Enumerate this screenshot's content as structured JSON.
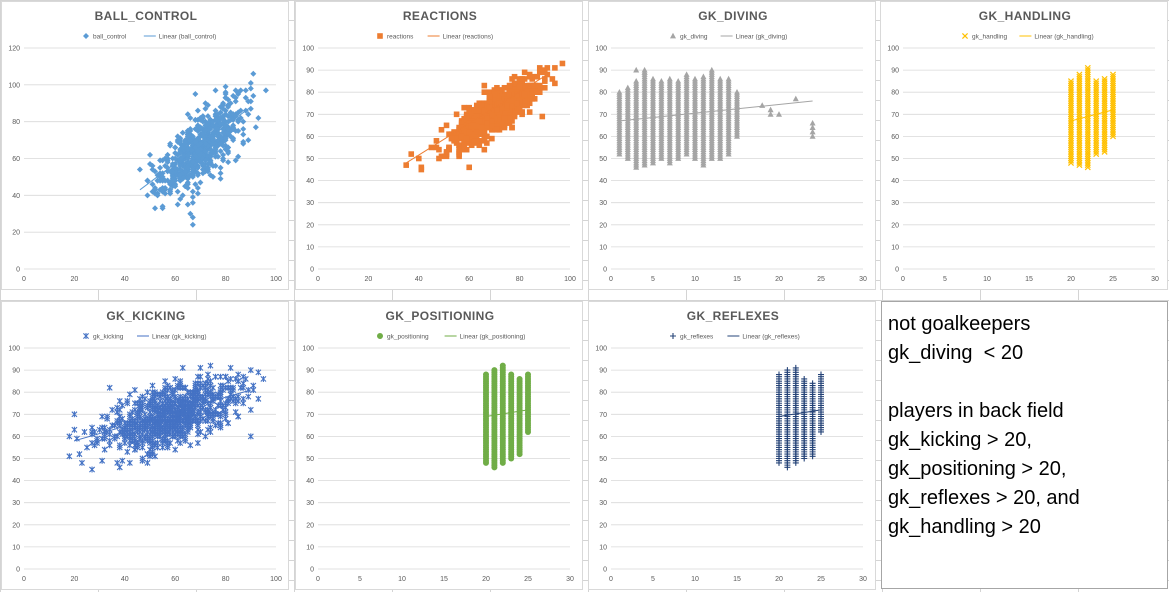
{
  "charts": [
    {
      "id": "ball_control",
      "title": "BALL_CONTROL",
      "color": "#5b9bd5",
      "marker": "diamond",
      "series_name": "ball_control",
      "trend_name": "Linear (ball_control)",
      "xlim": [
        0,
        100
      ],
      "xstep": 20,
      "ylim": [
        0,
        120
      ],
      "ystep": 20,
      "cloud": {
        "type": "ellipse",
        "cx": 70,
        "cy": 66,
        "sx": 8,
        "sy": 12,
        "rho": 0.72,
        "n": 700,
        "extra": [
          [
            53,
            40
          ],
          [
            60,
            45
          ],
          [
            65,
            35
          ],
          [
            66,
            30
          ],
          [
            67,
            28
          ],
          [
            67,
            24
          ],
          [
            55,
            48
          ],
          [
            88,
            97
          ],
          [
            90,
            98
          ],
          [
            85,
            96
          ]
        ]
      },
      "chart_data": {
        "type": "scatter",
        "xlabel": "",
        "ylabel": "",
        "series": [
          {
            "name": "ball_control",
            "x": [
              48,
              55,
              60,
              65,
              70,
              75,
              80,
              85,
              90,
              67
            ],
            "y": [
              44,
              52,
              58,
              64,
              70,
              76,
              82,
              90,
              97,
              24
            ]
          }
        ],
        "trendline": {
          "name": "Linear (ball_control)",
          "x": [
            46,
            90
          ],
          "y": [
            43,
            88
          ]
        },
        "xlim": [
          0,
          100
        ],
        "ylim": [
          0,
          120
        ],
        "legend": "top",
        "grid": true
      }
    },
    {
      "id": "reactions",
      "title": "REACTIONS",
      "color": "#ed7d31",
      "marker": "square",
      "series_name": "reactions",
      "trend_name": "Linear (reactions)",
      "xlim": [
        0,
        100
      ],
      "xstep": 20,
      "ylim": [
        0,
        100
      ],
      "ystep": 10,
      "cloud": {
        "type": "ellipse",
        "cx": 70,
        "cy": 71,
        "sx": 8,
        "sy": 7,
        "rho": 0.82,
        "n": 900,
        "extra": [
          [
            35,
            47
          ],
          [
            37,
            52
          ],
          [
            40,
            50
          ],
          [
            45,
            55
          ],
          [
            47,
            58
          ],
          [
            60,
            46
          ],
          [
            91,
            91
          ],
          [
            90,
            89
          ]
        ]
      },
      "chart_data": {
        "type": "scatter",
        "xlabel": "",
        "ylabel": "",
        "series": [
          {
            "name": "reactions",
            "x": [
              35,
              45,
              55,
              65,
              70,
              75,
              85,
              91
            ],
            "y": [
              47,
              55,
              62,
              68,
              71,
              75,
              84,
              91
            ]
          }
        ],
        "trendline": {
          "name": "Linear (reactions)",
          "x": [
            35,
            91
          ],
          "y": [
            48,
            88
          ]
        },
        "xlim": [
          0,
          100
        ],
        "ylim": [
          0,
          100
        ],
        "legend": "top",
        "grid": true
      }
    },
    {
      "id": "gk_diving",
      "title": "GK_DIVING",
      "color": "#a5a5a5",
      "marker": "triangle",
      "series_name": "gk_diving",
      "trend_name": "Linear (gk_diving)",
      "xlim": [
        0,
        30
      ],
      "xstep": 5,
      "ylim": [
        0,
        100
      ],
      "ystep": 10,
      "cloud": {
        "type": "columns",
        "cols": [
          [
            1,
            52,
            80
          ],
          [
            2,
            50,
            82
          ],
          [
            3,
            46,
            85
          ],
          [
            4,
            47,
            90
          ],
          [
            5,
            48,
            86
          ],
          [
            6,
            50,
            85
          ],
          [
            7,
            48,
            86
          ],
          [
            8,
            50,
            85
          ],
          [
            9,
            52,
            88
          ],
          [
            10,
            50,
            86
          ],
          [
            11,
            47,
            87
          ],
          [
            12,
            50,
            90
          ],
          [
            13,
            50,
            86
          ],
          [
            14,
            52,
            86
          ],
          [
            15,
            60,
            80
          ]
        ],
        "extra": [
          [
            18,
            74
          ],
          [
            19,
            70
          ],
          [
            19,
            72
          ],
          [
            20,
            70
          ],
          [
            22,
            77
          ],
          [
            24,
            66
          ],
          [
            24,
            64
          ],
          [
            24,
            62
          ],
          [
            24,
            60
          ],
          [
            3,
            90
          ],
          [
            4,
            89
          ]
        ]
      },
      "chart_data": {
        "type": "scatter",
        "xlabel": "",
        "ylabel": "",
        "series": [
          {
            "name": "gk_diving",
            "x": [
              1,
              3,
              5,
              8,
              10,
              12,
              15,
              18,
              22,
              24
            ],
            "y": [
              65,
              68,
              72,
              70,
              72,
              74,
              70,
              74,
              77,
              63
            ]
          }
        ],
        "trendline": {
          "name": "Linear (gk_diving)",
          "x": [
            1,
            24
          ],
          "y": [
            67,
            76
          ]
        },
        "xlim": [
          0,
          30
        ],
        "ylim": [
          0,
          100
        ],
        "legend": "top",
        "grid": true
      }
    },
    {
      "id": "gk_handling",
      "title": "GK_HANDLING",
      "color": "#ffc000",
      "marker": "x",
      "series_name": "gk_handling",
      "trend_name": "Linear (gk_handling)",
      "xlim": [
        0,
        30
      ],
      "xstep": 5,
      "ylim": [
        0,
        100
      ],
      "ystep": 10,
      "cloud": {
        "type": "columns",
        "cols": [
          [
            20,
            48,
            85
          ],
          [
            21,
            47,
            88
          ],
          [
            22,
            46,
            91
          ],
          [
            23,
            52,
            85
          ],
          [
            24,
            53,
            86
          ],
          [
            25,
            60,
            88
          ]
        ],
        "extra": []
      },
      "chart_data": {
        "type": "scatter",
        "xlabel": "",
        "ylabel": "",
        "series": [
          {
            "name": "gk_handling",
            "x": [
              20,
              21,
              22,
              23,
              24,
              25
            ],
            "y": [
              66,
              68,
              69,
              68,
              70,
              72
            ]
          }
        ],
        "trendline": {
          "name": "Linear (gk_handling)",
          "x": [
            20,
            25
          ],
          "y": [
            67,
            72
          ]
        },
        "xlim": [
          0,
          30
        ],
        "ylim": [
          0,
          100
        ],
        "legend": "top",
        "grid": true
      }
    },
    {
      "id": "gk_kicking",
      "title": "GK_KICKING",
      "color": "#4472c4",
      "marker": "star",
      "series_name": "gk_kicking",
      "trend_name": "Linear (gk_kicking)",
      "xlim": [
        0,
        100
      ],
      "xstep": 20,
      "ylim": [
        0,
        100
      ],
      "ystep": 10,
      "cloud": {
        "type": "ellipse",
        "cx": 58,
        "cy": 69,
        "sx": 13,
        "sy": 8,
        "rho": 0.55,
        "n": 900,
        "extra": [
          [
            20,
            70
          ],
          [
            22,
            52
          ],
          [
            25,
            55
          ],
          [
            38,
            46
          ],
          [
            42,
            48
          ],
          [
            85,
            88
          ],
          [
            90,
            90
          ],
          [
            82,
            91
          ]
        ]
      },
      "chart_data": {
        "type": "scatter",
        "xlabel": "",
        "ylabel": "",
        "series": [
          {
            "name": "gk_kicking",
            "x": [
              20,
              30,
              40,
              50,
              60,
              70,
              80,
              90
            ],
            "y": [
              70,
              62,
              64,
              67,
              70,
              73,
              77,
              90
            ]
          }
        ],
        "trendline": {
          "name": "Linear (gk_kicking)",
          "x": [
            20,
            90
          ],
          "y": [
            58,
            81
          ]
        },
        "xlim": [
          0,
          100
        ],
        "ylim": [
          0,
          100
        ],
        "legend": "top",
        "grid": true
      }
    },
    {
      "id": "gk_positioning",
      "title": "GK_POSITIONING",
      "color": "#70ad47",
      "marker": "circle",
      "series_name": "gk_positioning",
      "trend_name": "Linear (gk_positioning)",
      "xlim": [
        0,
        30
      ],
      "xstep": 5,
      "ylim": [
        0,
        100
      ],
      "ystep": 10,
      "cloud": {
        "type": "columns",
        "cols": [
          [
            20,
            48,
            88
          ],
          [
            21,
            46,
            90
          ],
          [
            22,
            48,
            92
          ],
          [
            23,
            50,
            88
          ],
          [
            24,
            52,
            86
          ],
          [
            25,
            62,
            88
          ]
        ],
        "extra": []
      },
      "chart_data": {
        "type": "scatter",
        "xlabel": "",
        "ylabel": "",
        "series": [
          {
            "name": "gk_positioning",
            "x": [
              20,
              21,
              22,
              23,
              24,
              25
            ],
            "y": [
              68,
              69,
              70,
              70,
              71,
              74
            ]
          }
        ],
        "trendline": {
          "name": "Linear (gk_positioning)",
          "x": [
            20,
            25
          ],
          "y": [
            69,
            72
          ]
        },
        "xlim": [
          0,
          30
        ],
        "ylim": [
          0,
          100
        ],
        "legend": "top",
        "grid": true
      }
    },
    {
      "id": "gk_reflexes",
      "title": "GK_REFLEXES",
      "color": "#264478",
      "marker": "plus",
      "series_name": "gk_reflexes",
      "trend_name": "Linear (gk_reflexes)",
      "xlim": [
        0,
        30
      ],
      "xstep": 5,
      "ylim": [
        0,
        100
      ],
      "ystep": 10,
      "cloud": {
        "type": "columns",
        "cols": [
          [
            20,
            48,
            88
          ],
          [
            21,
            46,
            90
          ],
          [
            22,
            48,
            91
          ],
          [
            23,
            50,
            86
          ],
          [
            24,
            51,
            84
          ],
          [
            25,
            62,
            88
          ]
        ],
        "extra": []
      },
      "chart_data": {
        "type": "scatter",
        "xlabel": "",
        "ylabel": "",
        "series": [
          {
            "name": "gk_reflexes",
            "x": [
              20,
              21,
              22,
              23,
              24,
              25
            ],
            "y": [
              68,
              69,
              70,
              70,
              71,
              73
            ]
          }
        ],
        "trendline": {
          "name": "Linear (gk_reflexes)",
          "x": [
            20,
            25
          ],
          "y": [
            69,
            72
          ]
        },
        "xlim": [
          0,
          30
        ],
        "ylim": [
          0,
          100
        ],
        "legend": "top",
        "grid": true
      }
    }
  ],
  "note": {
    "group1_line1": "not goalkeepers",
    "group1_line2": "gk_diving  < 20",
    "group2_line1": "players in back field",
    "group2_line2": "gk_kicking > 20,",
    "group2_line3": "gk_positioning > 20,",
    "group2_line4": "gk_reflexes > 20, and",
    "group2_line5": "gk_handling > 20"
  },
  "colors": {
    "axis_text": "#595959",
    "gridline": "#d9d9d9",
    "title": "#595959",
    "sheet_grid": "#d4d4d4"
  }
}
